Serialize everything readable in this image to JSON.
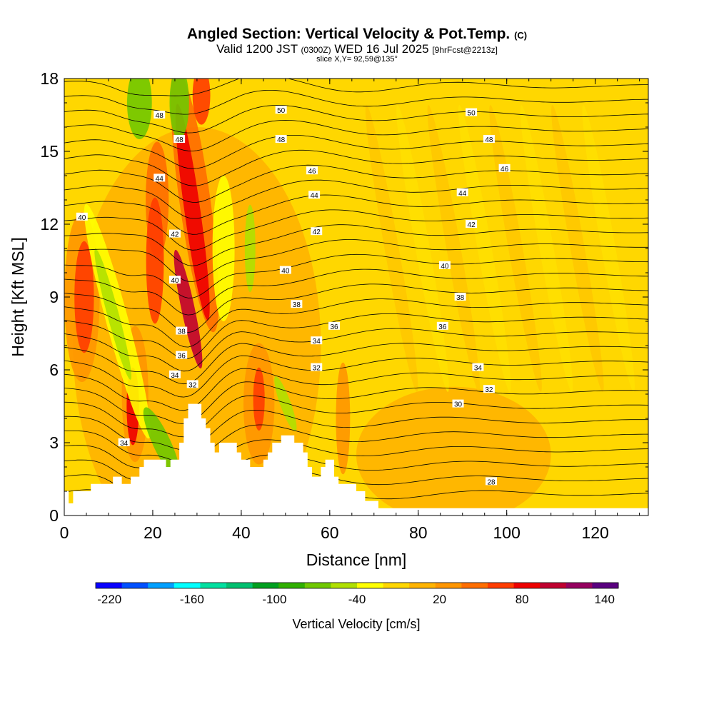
{
  "title": {
    "main": "Angled Section: Vertical Velocity & Pot.Temp.",
    "unit": "(C)"
  },
  "subtitle": {
    "valid": "Valid 1200 JST",
    "utc": "(0300Z)",
    "date": "WED 16 Jul 2025",
    "forecast": "[9hrFcst@2213z]"
  },
  "slice_label": "slice X,Y= 92,59@135°",
  "chart_data": {
    "type": "heatmap",
    "xlabel": "Distance [nm]",
    "ylabel": "Height [Kft MSL]",
    "xlim": [
      0,
      132
    ],
    "ylim": [
      0,
      18
    ],
    "x_ticks": [
      "0",
      "20",
      "40",
      "60",
      "80",
      "100",
      "120"
    ],
    "y_ticks": [
      "0",
      "3",
      "6",
      "9",
      "12",
      "15",
      "18"
    ],
    "colorbar": {
      "label": "Vertical Velocity [cm/s]",
      "tick_labels": [
        "-220",
        "-160",
        "-100",
        "-40",
        "20",
        "80",
        "140"
      ],
      "bins": [
        -230,
        -210,
        -190,
        -170,
        -150,
        -130,
        -110,
        -90,
        -70,
        -50,
        -30,
        -10,
        10,
        30,
        50,
        70,
        90,
        110,
        130,
        150
      ],
      "colors": [
        "#0a00ff",
        "#0050ff",
        "#00a0ff",
        "#00ffff",
        "#00e0a0",
        "#00c070",
        "#00a020",
        "#30b000",
        "#70c800",
        "#b0e000",
        "#ffff00",
        "#ffd700",
        "#ffb400",
        "#ff9600",
        "#ff6e00",
        "#ff3c00",
        "#ee0000",
        "#c00030",
        "#960060",
        "#5a0080"
      ]
    },
    "terrain_profile": [
      [
        0,
        1
      ],
      [
        1,
        1
      ],
      [
        1,
        0.5
      ],
      [
        2,
        0.5
      ],
      [
        2,
        1
      ],
      [
        6,
        1
      ],
      [
        6,
        1.3
      ],
      [
        9,
        1.3
      ],
      [
        9,
        1.3
      ],
      [
        11,
        1.3
      ],
      [
        11,
        1.6
      ],
      [
        13,
        1.6
      ],
      [
        13,
        1.3
      ],
      [
        15,
        1.3
      ],
      [
        15,
        1.6
      ],
      [
        17,
        1.6
      ],
      [
        17,
        2
      ],
      [
        18,
        2
      ],
      [
        18,
        2.3
      ],
      [
        23,
        2.3
      ],
      [
        23,
        2
      ],
      [
        24,
        2
      ],
      [
        24,
        2.3
      ],
      [
        26,
        2.3
      ],
      [
        26,
        3
      ],
      [
        27,
        3
      ],
      [
        27,
        4
      ],
      [
        28,
        4
      ],
      [
        28,
        4.6
      ],
      [
        31,
        4.6
      ],
      [
        31,
        4
      ],
      [
        32,
        4
      ],
      [
        32,
        3.6
      ],
      [
        33,
        3.6
      ],
      [
        33,
        3
      ],
      [
        34,
        3
      ],
      [
        34,
        2.6
      ],
      [
        35,
        2.6
      ],
      [
        35,
        3
      ],
      [
        39,
        3
      ],
      [
        39,
        2.6
      ],
      [
        40,
        2.6
      ],
      [
        40,
        2.3
      ],
      [
        42,
        2.3
      ],
      [
        42,
        2
      ],
      [
        45,
        2
      ],
      [
        45,
        2.3
      ],
      [
        46,
        2.3
      ],
      [
        46,
        2.6
      ],
      [
        47,
        2.6
      ],
      [
        47,
        3
      ],
      [
        49,
        3
      ],
      [
        49,
        3.3
      ],
      [
        52,
        3.3
      ],
      [
        52,
        3
      ],
      [
        54,
        3
      ],
      [
        54,
        2.6
      ],
      [
        55,
        2.6
      ],
      [
        55,
        2
      ],
      [
        56,
        2
      ],
      [
        56,
        1.6
      ],
      [
        58,
        1.6
      ],
      [
        58,
        2
      ],
      [
        59,
        2
      ],
      [
        59,
        2.3
      ],
      [
        61,
        2.3
      ],
      [
        61,
        1.6
      ],
      [
        62,
        1.6
      ],
      [
        62,
        1.3
      ],
      [
        66,
        1.3
      ],
      [
        66,
        1
      ],
      [
        68,
        1
      ],
      [
        68,
        0.6
      ],
      [
        71,
        0.6
      ],
      [
        71,
        0.3
      ],
      [
        132,
        0.3
      ],
      [
        132,
        0
      ]
    ],
    "contour_labels": [
      {
        "text": "50",
        "x": 49,
        "y": 16.7
      },
      {
        "text": "50",
        "x": 92,
        "y": 16.6
      },
      {
        "text": "48",
        "x": 21.5,
        "y": 16.5
      },
      {
        "text": "48",
        "x": 26,
        "y": 15.5
      },
      {
        "text": "48",
        "x": 49,
        "y": 15.5
      },
      {
        "text": "48",
        "x": 96,
        "y": 15.5
      },
      {
        "text": "46",
        "x": 56,
        "y": 14.2
      },
      {
        "text": "46",
        "x": 99.5,
        "y": 14.3
      },
      {
        "text": "44",
        "x": 21.5,
        "y": 13.9
      },
      {
        "text": "44",
        "x": 56.5,
        "y": 13.2
      },
      {
        "text": "44",
        "x": 90,
        "y": 13.3
      },
      {
        "text": "42",
        "x": 25,
        "y": 11.6
      },
      {
        "text": "42",
        "x": 57,
        "y": 11.7
      },
      {
        "text": "42",
        "x": 92,
        "y": 12
      },
      {
        "text": "40",
        "x": 4,
        "y": 12.3
      },
      {
        "text": "40",
        "x": 25,
        "y": 9.7
      },
      {
        "text": "40",
        "x": 50,
        "y": 10.1
      },
      {
        "text": "40",
        "x": 86,
        "y": 10.3
      },
      {
        "text": "38",
        "x": 52.5,
        "y": 8.7
      },
      {
        "text": "38",
        "x": 89.5,
        "y": 9
      },
      {
        "text": "38",
        "x": 26.5,
        "y": 7.6
      },
      {
        "text": "36",
        "x": 61,
        "y": 7.8
      },
      {
        "text": "36",
        "x": 85.5,
        "y": 7.8
      },
      {
        "text": "36",
        "x": 26.5,
        "y": 6.6
      },
      {
        "text": "34",
        "x": 57,
        "y": 7.2
      },
      {
        "text": "34",
        "x": 93.5,
        "y": 6.1
      },
      {
        "text": "34",
        "x": 25,
        "y": 5.8
      },
      {
        "text": "34",
        "x": 13.5,
        "y": 3
      },
      {
        "text": "32",
        "x": 57,
        "y": 6.1
      },
      {
        "text": "32",
        "x": 96,
        "y": 5.2
      },
      {
        "text": "32",
        "x": 29,
        "y": 5.4
      },
      {
        "text": "30",
        "x": 89,
        "y": 4.6
      },
      {
        "text": "28",
        "x": 96.5,
        "y": 1.4
      }
    ],
    "contour_levels": [
      "28",
      "30",
      "32",
      "34",
      "36",
      "38",
      "40",
      "42",
      "44",
      "46",
      "48",
      "50"
    ]
  }
}
